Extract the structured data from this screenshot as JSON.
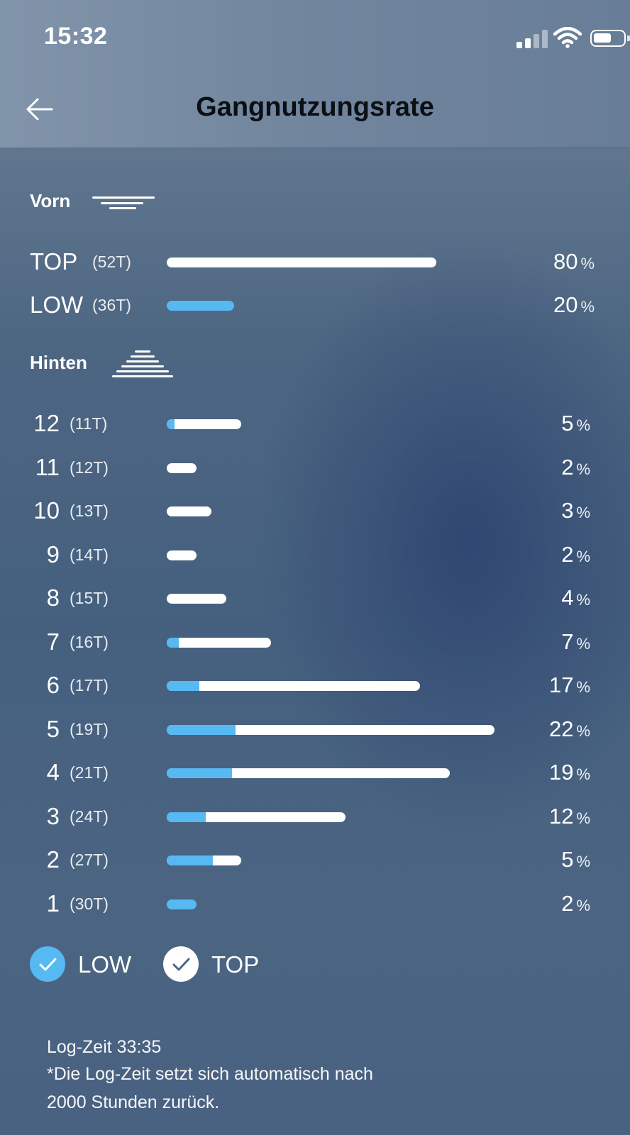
{
  "status_bar": {
    "time": "15:32",
    "signal_icon": "signal-icon",
    "wifi_icon": "wifi-icon",
    "battery_icon": "battery-icon"
  },
  "header": {
    "title": "Gangnutzungsrate",
    "back_icon": "arrow-left-icon"
  },
  "colors": {
    "low": "#56b9f2",
    "top": "#ffffff"
  },
  "front": {
    "title": "Vorn",
    "rows": [
      {
        "name": "TOP",
        "teeth": "(52T)",
        "value": "80",
        "unit": "%",
        "low_pct": 0,
        "top_pct": 80
      },
      {
        "name": "LOW",
        "teeth": "(36T)",
        "value": "20",
        "unit": "%",
        "low_pct": 20,
        "top_pct": 0
      }
    ]
  },
  "rear": {
    "title": "Hinten",
    "rows": [
      {
        "name": "12",
        "teeth": "(11T)",
        "value": "5",
        "unit": "%",
        "low_pct": 0.5,
        "top_pct": 4.5
      },
      {
        "name": "11",
        "teeth": "(12T)",
        "value": "2",
        "unit": "%",
        "low_pct": 0,
        "top_pct": 2
      },
      {
        "name": "10",
        "teeth": "(13T)",
        "value": "3",
        "unit": "%",
        "low_pct": 0,
        "top_pct": 3
      },
      {
        "name": "9",
        "teeth": "(14T)",
        "value": "2",
        "unit": "%",
        "low_pct": 0,
        "top_pct": 2
      },
      {
        "name": "8",
        "teeth": "(15T)",
        "value": "4",
        "unit": "%",
        "low_pct": 0,
        "top_pct": 4
      },
      {
        "name": "7",
        "teeth": "(16T)",
        "value": "7",
        "unit": "%",
        "low_pct": 0.8,
        "top_pct": 6.2
      },
      {
        "name": "6",
        "teeth": "(17T)",
        "value": "17",
        "unit": "%",
        "low_pct": 2.2,
        "top_pct": 14.8
      },
      {
        "name": "5",
        "teeth": "(19T)",
        "value": "22",
        "unit": "%",
        "low_pct": 4.6,
        "top_pct": 17.4
      },
      {
        "name": "4",
        "teeth": "(21T)",
        "value": "19",
        "unit": "%",
        "low_pct": 4.4,
        "top_pct": 14.6
      },
      {
        "name": "3",
        "teeth": "(24T)",
        "value": "12",
        "unit": "%",
        "low_pct": 2.6,
        "top_pct": 9.4
      },
      {
        "name": "2",
        "teeth": "(27T)",
        "value": "5",
        "unit": "%",
        "low_pct": 3.1,
        "top_pct": 1.9
      },
      {
        "name": "1",
        "teeth": "(30T)",
        "value": "2",
        "unit": "%",
        "low_pct": 2,
        "top_pct": 0
      }
    ]
  },
  "legend": [
    {
      "label": "LOW",
      "icon": "check-icon",
      "color": "#56b9f2",
      "checked": true
    },
    {
      "label": "TOP",
      "icon": "check-icon",
      "color": "#ffffff",
      "checked": true
    }
  ],
  "footer": {
    "log_time": "Log-Zeit 33:35",
    "note_line1": "*Die Log-Zeit setzt sich automatisch nach",
    "note_line2": "2000 Stunden zurück."
  }
}
